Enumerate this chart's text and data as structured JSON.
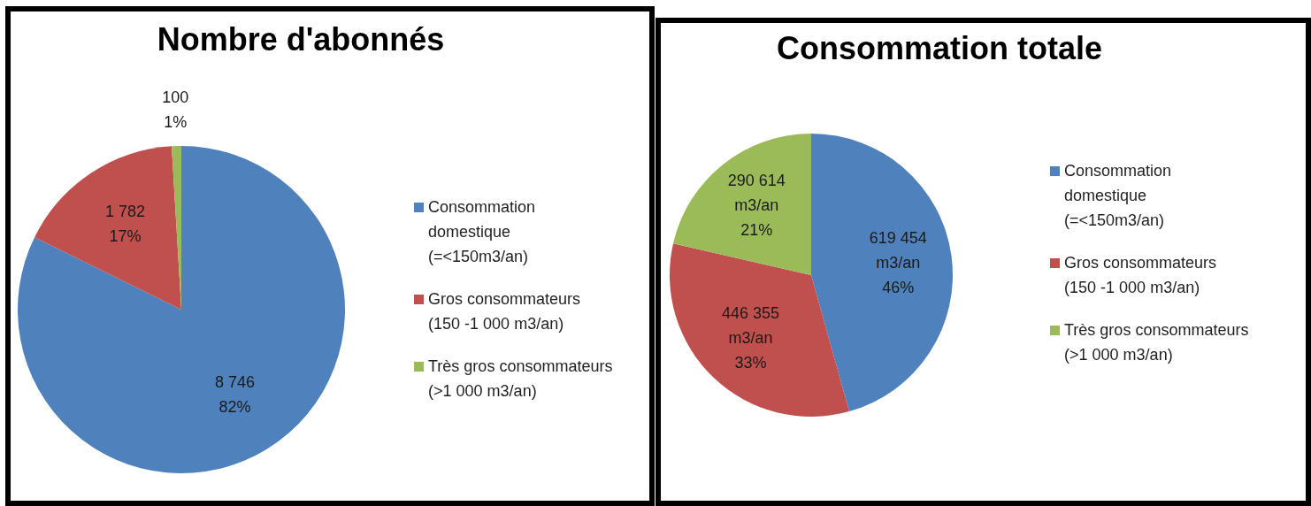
{
  "chart_data": [
    {
      "type": "pie",
      "title": "Nombre d'abonnés",
      "categories": [
        "Consommation domestique (=<150m3/an)",
        "Gros consommateurs (150 -1 000 m3/an)",
        "Très gros consommateurs (>1 000 m3/an)"
      ],
      "values": [
        8746,
        1782,
        100
      ],
      "colors": [
        "#4f81bd",
        "#c0504d",
        "#9bbb59"
      ],
      "value_labels": [
        "8 746\n82%",
        "1 782\n17%",
        "100\n1%"
      ],
      "legend": "right"
    },
    {
      "type": "pie",
      "title": "Consommation totale",
      "categories": [
        "Consommation domestique (=<150m3/an)",
        "Gros consommateurs (150 -1 000 m3/an)",
        "Très gros consommateurs (>1 000 m3/an)"
      ],
      "values": [
        619454,
        446355,
        290614
      ],
      "colors": [
        "#4f81bd",
        "#c0504d",
        "#9bbb59"
      ],
      "value_labels": [
        "619 454\nm3/an\n46%",
        "446 355\nm3/an\n33%",
        "290 614\nm3/an\n21%"
      ],
      "legend": "right"
    }
  ]
}
